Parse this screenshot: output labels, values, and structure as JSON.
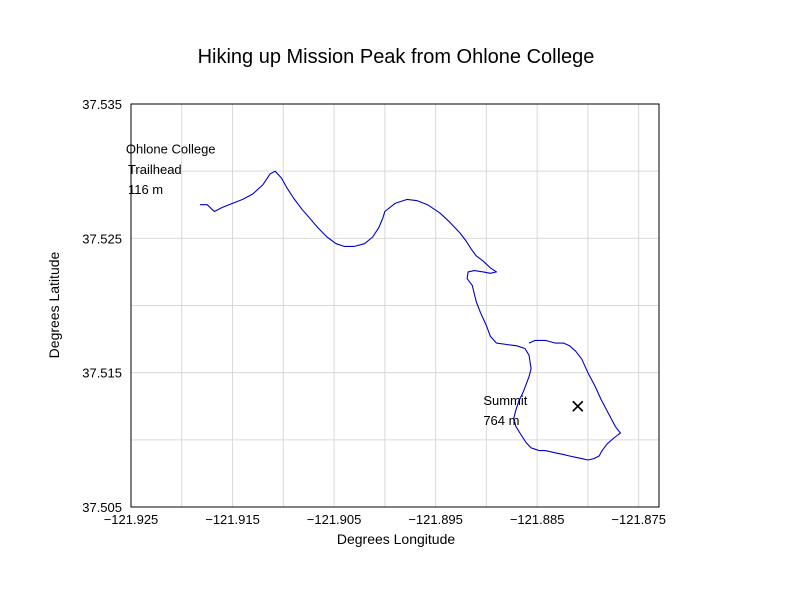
{
  "chart_data": {
    "type": "line",
    "title": "Hiking up Mission Peak from Ohlone College",
    "xlabel": "Degrees Longitude",
    "ylabel": "Degrees Latitude",
    "xlim": [
      -121.925,
      -121.873
    ],
    "ylim": [
      37.505,
      37.535
    ],
    "grid": true,
    "x_ticks": [
      -121.925,
      -121.915,
      -121.905,
      -121.895,
      -121.885,
      -121.875
    ],
    "x_tick_labels": [
      "−121.925",
      "−121.915",
      "−121.905",
      "−121.895",
      "−121.885",
      "−121.875"
    ],
    "y_ticks": [
      37.505,
      37.515,
      37.525,
      37.535
    ],
    "y_tick_labels": [
      "37.505",
      "37.515",
      "37.525",
      "37.535"
    ],
    "x_grid": [
      -121.925,
      -121.92,
      -121.915,
      -121.91,
      -121.905,
      -121.9,
      -121.895,
      -121.89,
      -121.885,
      -121.88,
      -121.875
    ],
    "y_grid": [
      37.505,
      37.51,
      37.515,
      37.52,
      37.525,
      37.53,
      37.535
    ],
    "series": [
      {
        "color": "#0000cc",
        "x": [
          -121.9182,
          -121.9175,
          -121.9168,
          -121.916,
          -121.915,
          -121.914,
          -121.913,
          -121.912,
          -121.9113,
          -121.9108,
          -121.9102,
          -121.9096,
          -121.909,
          -121.9082,
          -121.9074,
          -121.9066,
          -121.9057,
          -121.9048,
          -121.904,
          -121.903,
          -121.902,
          -121.9012,
          -121.9006,
          -121.9002,
          -121.9,
          -121.899,
          -121.8978,
          -121.8968,
          -121.8958,
          -121.8946,
          -121.8936,
          -121.8926,
          -121.892,
          -121.8915,
          -121.891,
          -121.8903,
          -121.8896,
          -121.889,
          -121.8896,
          -121.8903,
          -121.8912,
          -121.8918,
          -121.8919,
          -121.8914,
          -121.8912,
          -121.891,
          -121.8906,
          -121.89,
          -121.8896,
          -121.889,
          -121.888,
          -121.887,
          -121.8862,
          -121.8858,
          -121.8856,
          -121.8858,
          -121.8861,
          -121.8864,
          -121.8868,
          -121.8871,
          -121.8873,
          -121.8871,
          -121.8866,
          -121.8861,
          -121.8856,
          -121.8852,
          -121.8848,
          -121.8842,
          -121.8836,
          -121.883,
          -121.8824,
          -121.8818,
          -121.8812,
          -121.8806,
          -121.88,
          -121.8794,
          -121.8789,
          -121.8786,
          -121.8781,
          -121.8775,
          -121.877,
          -121.8768,
          -121.8773,
          -121.878,
          -121.8787,
          -121.8793,
          -121.88,
          -121.8806,
          -121.8812,
          -121.8818,
          -121.8824,
          -121.8832,
          -121.8842,
          -121.8852,
          -121.8858
        ],
        "y": [
          37.5275,
          37.5275,
          37.527,
          37.5273,
          37.5276,
          37.5279,
          37.5283,
          37.529,
          37.5298,
          37.53,
          37.5295,
          37.5287,
          37.528,
          37.5272,
          37.5265,
          37.5258,
          37.5251,
          37.5246,
          37.5244,
          37.5244,
          37.5246,
          37.5251,
          37.5258,
          37.5265,
          37.527,
          37.5276,
          37.5279,
          37.5278,
          37.5275,
          37.5269,
          37.5262,
          37.5254,
          37.5248,
          37.5242,
          37.5237,
          37.5233,
          37.5228,
          37.5225,
          37.5224,
          37.5225,
          37.5226,
          37.5225,
          37.522,
          37.5215,
          37.5209,
          37.5203,
          37.5195,
          37.5185,
          37.5177,
          37.5172,
          37.5171,
          37.517,
          37.5168,
          37.5163,
          37.5153,
          37.5147,
          37.5141,
          37.5135,
          37.5129,
          37.5122,
          37.5116,
          37.511,
          37.5104,
          37.5098,
          37.5094,
          37.5093,
          37.5092,
          37.5092,
          37.5091,
          37.509,
          37.5089,
          37.5088,
          37.5087,
          37.5086,
          37.5085,
          37.5086,
          37.5088,
          37.5092,
          37.5097,
          37.5101,
          37.5104,
          37.5105,
          37.511,
          37.512,
          37.513,
          37.514,
          37.515,
          37.516,
          37.5166,
          37.517,
          37.5172,
          37.5172,
          37.5174,
          37.5174,
          37.5172
        ]
      }
    ],
    "annotations": [
      {
        "lines": [
          "Ohlone College"
        ],
        "x": -121.9255,
        "y": 37.5313
      },
      {
        "lines": [
          "Trailhead",
          "116 m"
        ],
        "x": -121.9253,
        "y": 37.5298
      },
      {
        "lines": [
          "Summit",
          "764 m"
        ],
        "x": -121.8903,
        "y": 37.5126
      }
    ],
    "marker": {
      "shape": "x",
      "x": -121.881,
      "y": 37.5125
    }
  }
}
